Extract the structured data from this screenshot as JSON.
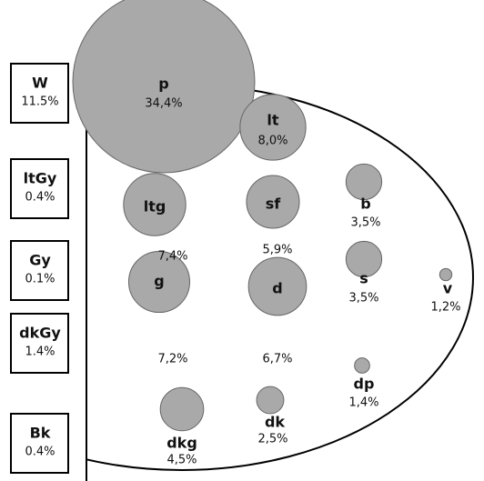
{
  "boxes": [
    {
      "label": "W",
      "value_label": "11.5%"
    },
    {
      "label": "ltGy",
      "value_label": "0.4%"
    },
    {
      "label": "Gy",
      "value_label": "0.1%"
    },
    {
      "label": "dkGy",
      "value_label": "1.4%"
    },
    {
      "label": "Bk",
      "value_label": "0.4%"
    }
  ],
  "nodes": [
    {
      "label": "p",
      "value": 34.4,
      "value_label": "34,4%"
    },
    {
      "label": "lt",
      "value": 8.0,
      "value_label": "8,0%"
    },
    {
      "label": "ltg",
      "value": 7.4,
      "value_label": "7,4%"
    },
    {
      "label": "sf",
      "value": 5.9,
      "value_label": "5,9%"
    },
    {
      "label": "b",
      "value": 3.5,
      "value_label": "3,5%"
    },
    {
      "label": "s",
      "value": 3.5,
      "value_label": "3,5%"
    },
    {
      "label": "v",
      "value": 1.2,
      "value_label": "1,2%"
    },
    {
      "label": "g",
      "value": 7.2,
      "value_label": "7,2%"
    },
    {
      "label": "d",
      "value": 6.7,
      "value_label": "6,7%"
    },
    {
      "label": "dp",
      "value": 1.4,
      "value_label": "1,4%"
    },
    {
      "label": "dk",
      "value": 2.5,
      "value_label": "2,5%"
    },
    {
      "label": "dkg",
      "value": 4.5,
      "value_label": "4,5%"
    }
  ]
}
